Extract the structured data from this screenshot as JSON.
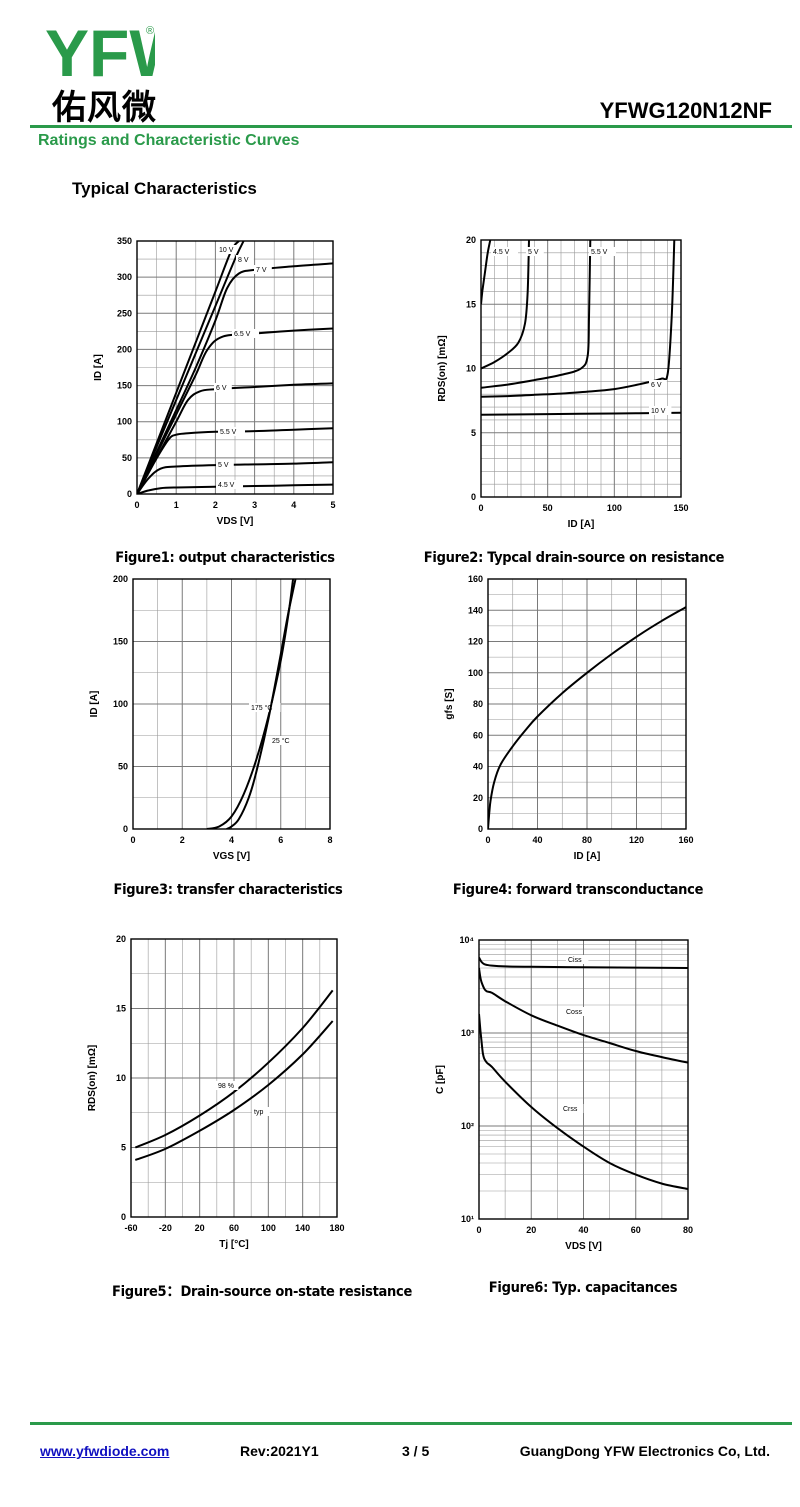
{
  "header": {
    "logo_latin": "YFW",
    "logo_cn": "佑风微",
    "registered_mark": "®",
    "part_number": "YFWG120N12NF",
    "section_title": "Ratings and Characteristic Curves",
    "subtitle": "Typical Characteristics"
  },
  "colors": {
    "brand_green": "#2a9a4a",
    "brand_orange": "#f08a24",
    "curve": "#000000",
    "grid": "#999999",
    "link": "#1010c0"
  },
  "chart_data": [
    {
      "type": "line",
      "caption": "Figure1: output characteristics",
      "xlabel": "VDS [V]",
      "ylabel": "ID [A]",
      "xlim": [
        0,
        5
      ],
      "ylim": [
        0,
        350
      ],
      "xticks": [
        0,
        1,
        2,
        3,
        4,
        5
      ],
      "yticks": [
        0,
        50,
        100,
        150,
        200,
        250,
        300,
        350
      ],
      "grid": true,
      "yscale": "linear",
      "series": [
        {
          "name": "10 V",
          "x": [
            0,
            0.5,
            1,
            1.5,
            2,
            2.4,
            2.6
          ],
          "y": [
            0,
            70,
            140,
            210,
            280,
            336,
            350
          ]
        },
        {
          "name": "8 V",
          "x": [
            0,
            0.5,
            1,
            1.5,
            2,
            2.5,
            2.72
          ],
          "y": [
            0,
            65,
            130,
            195,
            260,
            325,
            350
          ]
        },
        {
          "name": "7 V",
          "x": [
            0,
            0.5,
            1,
            1.5,
            2,
            2.3,
            2.6,
            3,
            4,
            5
          ],
          "y": [
            0,
            58,
            116,
            175,
            240,
            285,
            305,
            310,
            315,
            319
          ]
        },
        {
          "name": "6.5 V",
          "x": [
            0,
            0.5,
            1,
            1.5,
            1.8,
            2.2,
            3,
            4,
            5
          ],
          "y": [
            0,
            55,
            110,
            165,
            200,
            218,
            222,
            226,
            229
          ]
        },
        {
          "name": "6 V",
          "x": [
            0,
            0.5,
            1,
            1.3,
            1.6,
            2,
            3,
            4,
            5
          ],
          "y": [
            0,
            50,
            100,
            130,
            142,
            145,
            148,
            151,
            153
          ]
        },
        {
          "name": "5.5 V",
          "x": [
            0,
            0.4,
            0.8,
            1,
            1.3,
            2,
            3,
            4,
            5
          ],
          "y": [
            0,
            40,
            75,
            82,
            84,
            86,
            87,
            89,
            91
          ]
        },
        {
          "name": "5 V",
          "x": [
            0,
            0.3,
            0.6,
            1,
            2,
            3,
            4,
            5
          ],
          "y": [
            0,
            22,
            35,
            38,
            40,
            41,
            42,
            44
          ]
        },
        {
          "name": "4.5 V",
          "x": [
            0,
            0.3,
            0.6,
            1,
            2,
            3,
            4,
            5
          ],
          "y": [
            0,
            5,
            8,
            9,
            10,
            11,
            12,
            13
          ]
        }
      ]
    },
    {
      "type": "line",
      "caption": "Figure2: Typcal  drain-source on resistance",
      "xlabel": "ID [A]",
      "ylabel": "RDS(on) [mΩ]",
      "xlim": [
        0,
        150
      ],
      "ylim": [
        0,
        20
      ],
      "xticks": [
        0,
        50,
        100,
        150
      ],
      "yticks": [
        0,
        5,
        10,
        15,
        20
      ],
      "grid": true,
      "yscale": "linear",
      "series": [
        {
          "name": "4.5 V",
          "x": [
            0,
            1,
            3,
            5,
            7
          ],
          "y": [
            15,
            16,
            17.5,
            19,
            20
          ]
        },
        {
          "name": "5 V",
          "x": [
            0,
            10,
            20,
            28,
            33,
            35,
            36
          ],
          "y": [
            10,
            10.5,
            11.2,
            12,
            13.5,
            16,
            20
          ]
        },
        {
          "name": "5.5 V",
          "x": [
            0,
            20,
            40,
            60,
            75,
            80,
            81,
            82
          ],
          "y": [
            8.5,
            8.75,
            9.1,
            9.5,
            10,
            11,
            14,
            20
          ]
        },
        {
          "name": "6 V",
          "x": [
            0,
            20,
            40,
            60,
            80,
            100,
            120,
            135,
            140,
            143,
            145
          ],
          "y": [
            7.8,
            7.85,
            7.95,
            8.05,
            8.2,
            8.4,
            8.8,
            9.2,
            9.6,
            14,
            20
          ]
        },
        {
          "name": "10 V",
          "x": [
            0,
            50,
            100,
            150
          ],
          "y": [
            6.4,
            6.45,
            6.5,
            6.55
          ]
        }
      ]
    },
    {
      "type": "line",
      "caption": "Figure3: transfer characteristics",
      "xlabel": "VGS [V]",
      "ylabel": "ID [A]",
      "xlim": [
        0,
        8
      ],
      "ylim": [
        0,
        200
      ],
      "xticks": [
        0,
        2,
        4,
        6,
        8
      ],
      "yticks": [
        0,
        50,
        100,
        150,
        200
      ],
      "grid": true,
      "yscale": "linear",
      "series": [
        {
          "name": "175 °C",
          "x": [
            3,
            3.5,
            4,
            4.5,
            5,
            5.5,
            6,
            6.3,
            6.5
          ],
          "y": [
            0,
            2,
            10,
            28,
            55,
            90,
            135,
            170,
            200
          ]
        },
        {
          "name": "25 °C",
          "x": [
            3.8,
            4,
            4.3,
            4.7,
            5,
            5.5,
            6,
            6.3,
            6.6
          ],
          "y": [
            0,
            2,
            8,
            25,
            45,
            88,
            140,
            172,
            200
          ]
        }
      ]
    },
    {
      "type": "line",
      "caption": "Figure4: forward transconductance",
      "xlabel": "ID [A]",
      "ylabel": "gfs [S]",
      "xlim": [
        0,
        160
      ],
      "ylim": [
        0,
        160
      ],
      "xticks": [
        0,
        40,
        80,
        120,
        160
      ],
      "yticks": [
        0,
        20,
        40,
        60,
        80,
        100,
        120,
        140,
        160
      ],
      "grid": true,
      "yscale": "linear",
      "series": [
        {
          "name": "gfs",
          "x": [
            0,
            1,
            2,
            5,
            10,
            20,
            30,
            40,
            60,
            80,
            100,
            120,
            140,
            160
          ],
          "y": [
            0,
            10,
            18,
            30,
            41,
            53,
            63,
            72,
            87,
            100,
            112,
            123,
            133,
            142
          ]
        }
      ]
    },
    {
      "type": "line",
      "caption": "Figure5：Drain-source on-state resistance",
      "xlabel": "Tj [°C]",
      "ylabel": "RDS(on) [mΩ]",
      "xlim": [
        -60,
        180
      ],
      "ylim": [
        0,
        20
      ],
      "xticks": [
        -60,
        -20,
        20,
        60,
        100,
        140,
        180
      ],
      "yticks": [
        0,
        5,
        10,
        15,
        20
      ],
      "grid": true,
      "yscale": "linear",
      "series": [
        {
          "name": "98 %",
          "x": [
            -55,
            -20,
            20,
            60,
            100,
            140,
            175
          ],
          "y": [
            5,
            5.9,
            7.3,
            9,
            11.1,
            13.6,
            16.3
          ]
        },
        {
          "name": "typ",
          "x": [
            -55,
            -20,
            20,
            60,
            100,
            140,
            175
          ],
          "y": [
            4.1,
            4.9,
            6.2,
            7.7,
            9.5,
            11.7,
            14.1
          ]
        }
      ]
    },
    {
      "type": "line",
      "caption": "Figure6:  Typ. capacitances",
      "xlabel": "VDS [V]",
      "ylabel": "C [pF]",
      "xlim": [
        0,
        80
      ],
      "ylim": [
        10,
        10000
      ],
      "yscale": "log",
      "xticks": [
        0,
        20,
        40,
        60,
        80
      ],
      "yticks": [
        10,
        100,
        1000,
        10000
      ],
      "ytick_labels": [
        "10¹",
        "10²",
        "10³",
        "10⁴"
      ],
      "grid": true,
      "series": [
        {
          "name": "Ciss",
          "x": [
            0,
            1,
            2,
            3,
            5,
            10,
            20,
            40,
            60,
            80
          ],
          "y": [
            6500,
            5800,
            5500,
            5400,
            5300,
            5200,
            5150,
            5100,
            5050,
            5000
          ]
        },
        {
          "name": "Coss",
          "x": [
            0,
            0.5,
            1,
            2,
            3,
            5,
            10,
            20,
            30,
            40,
            50,
            60,
            70,
            80
          ],
          "y": [
            5000,
            4000,
            3500,
            3000,
            2800,
            2700,
            2200,
            1550,
            1200,
            950,
            780,
            640,
            550,
            480
          ]
        },
        {
          "name": "Crss",
          "x": [
            0,
            0.5,
            1,
            1.5,
            2,
            3,
            5,
            10,
            20,
            30,
            40,
            50,
            60,
            70,
            80
          ],
          "y": [
            1600,
            1100,
            800,
            600,
            530,
            480,
            430,
            300,
            160,
            95,
            60,
            40,
            30,
            24,
            21
          ]
        }
      ]
    }
  ],
  "footer": {
    "url": "www.yfwdiode.com",
    "revision": "Rev:2021Y1",
    "page": "3 / 5",
    "company": "GuangDong YFW Electronics Co, Ltd."
  }
}
